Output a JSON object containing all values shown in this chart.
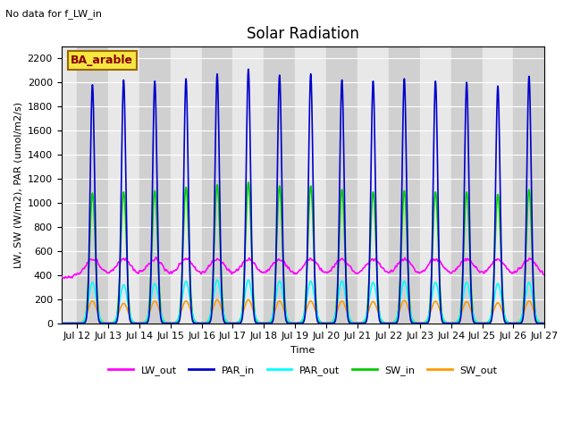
{
  "title": "Solar Radiation",
  "top_left_text": "No data for f_LW_in",
  "annotation_text": "BA_arable",
  "xlabel": "Time",
  "ylabel": "LW, SW (W/m2), PAR (umol/m2/s)",
  "xlim_days": [
    11.5,
    27.0
  ],
  "ylim": [
    0,
    2300
  ],
  "yticks": [
    0,
    200,
    400,
    600,
    800,
    1000,
    1200,
    1400,
    1600,
    1800,
    2000,
    2200
  ],
  "xtick_labels": [
    "Jul 12",
    "Jul 13",
    "Jul 14",
    "Jul 15",
    "Jul 16",
    "Jul 17",
    "Jul 18",
    "Jul 19",
    "Jul 20",
    "Jul 21",
    "Jul 22",
    "Jul 23",
    "Jul 24",
    "Jul 25",
    "Jul 26",
    "Jul 27"
  ],
  "xtick_positions": [
    12,
    13,
    14,
    15,
    16,
    17,
    18,
    19,
    20,
    21,
    22,
    23,
    24,
    25,
    26,
    27
  ],
  "series": {
    "LW_out": {
      "color": "#ff00ff",
      "lw": 1.2
    },
    "PAR_in": {
      "color": "#0000cc",
      "lw": 1.2
    },
    "PAR_out": {
      "color": "#00ffff",
      "lw": 1.2
    },
    "SW_in": {
      "color": "#00cc00",
      "lw": 1.2
    },
    "SW_out": {
      "color": "#ff9900",
      "lw": 1.2
    }
  },
  "bg_color": "#e8e8e8",
  "grid_color": "#ffffff",
  "title_fontsize": 12,
  "label_fontsize": 8,
  "tick_fontsize": 8,
  "par_in_peaks": [
    1980,
    2020,
    2010,
    2030,
    2070,
    2110,
    2060,
    2070,
    2020,
    2010,
    2030,
    2010,
    2000,
    1970,
    2050
  ],
  "par_out_peaks": [
    340,
    320,
    330,
    350,
    360,
    360,
    350,
    350,
    350,
    340,
    350,
    340,
    340,
    330,
    340
  ],
  "sw_in_peaks": [
    1080,
    1090,
    1100,
    1130,
    1150,
    1170,
    1140,
    1140,
    1110,
    1090,
    1100,
    1090,
    1090,
    1070,
    1110
  ],
  "sw_out_peaks": [
    185,
    165,
    185,
    185,
    195,
    195,
    185,
    185,
    185,
    180,
    190,
    183,
    178,
    170,
    185
  ]
}
